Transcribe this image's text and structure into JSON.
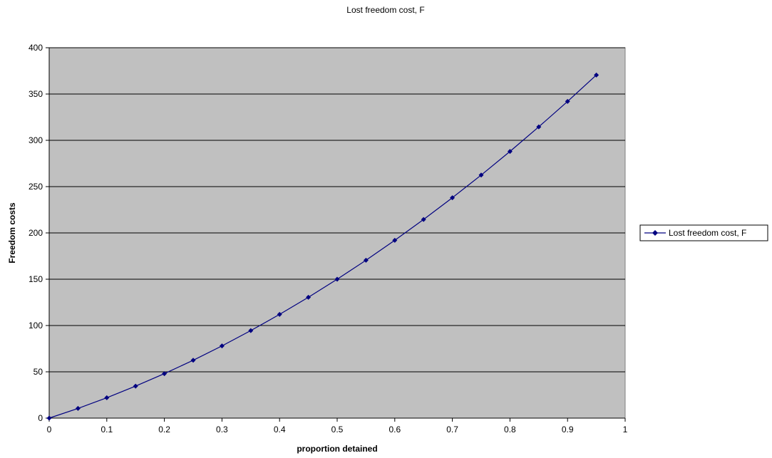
{
  "chart_data": {
    "type": "line",
    "title": "Lost freedom cost, F",
    "xlabel": "proportion detained",
    "ylabel": "Freedom costs",
    "xlim": [
      0,
      1
    ],
    "ylim": [
      0,
      400
    ],
    "x_ticks": [
      "0",
      "0.1",
      "0.2",
      "0.3",
      "0.4",
      "0.5",
      "0.6",
      "0.7",
      "0.8",
      "0.9",
      "1"
    ],
    "y_ticks": [
      "0",
      "50",
      "100",
      "150",
      "200",
      "250",
      "300",
      "350",
      "400"
    ],
    "grid": "horizontal",
    "legend_position": "right",
    "colors": {
      "plot_background": "#c0c0c0",
      "series": "#000080"
    },
    "series": [
      {
        "name": "Lost freedom cost, F",
        "marker": "diamond",
        "x": [
          0,
          0.05,
          0.1,
          0.15,
          0.2,
          0.25,
          0.3,
          0.35,
          0.4,
          0.45,
          0.5,
          0.55,
          0.6,
          0.65,
          0.7,
          0.75,
          0.8,
          0.85,
          0.9,
          0.95
        ],
        "y": [
          0,
          10.5,
          22,
          34.5,
          48,
          62.5,
          78,
          94.5,
          112,
          130.5,
          150,
          170.5,
          192,
          214.5,
          238,
          262.5,
          288,
          314.5,
          342,
          370.5
        ]
      }
    ]
  }
}
